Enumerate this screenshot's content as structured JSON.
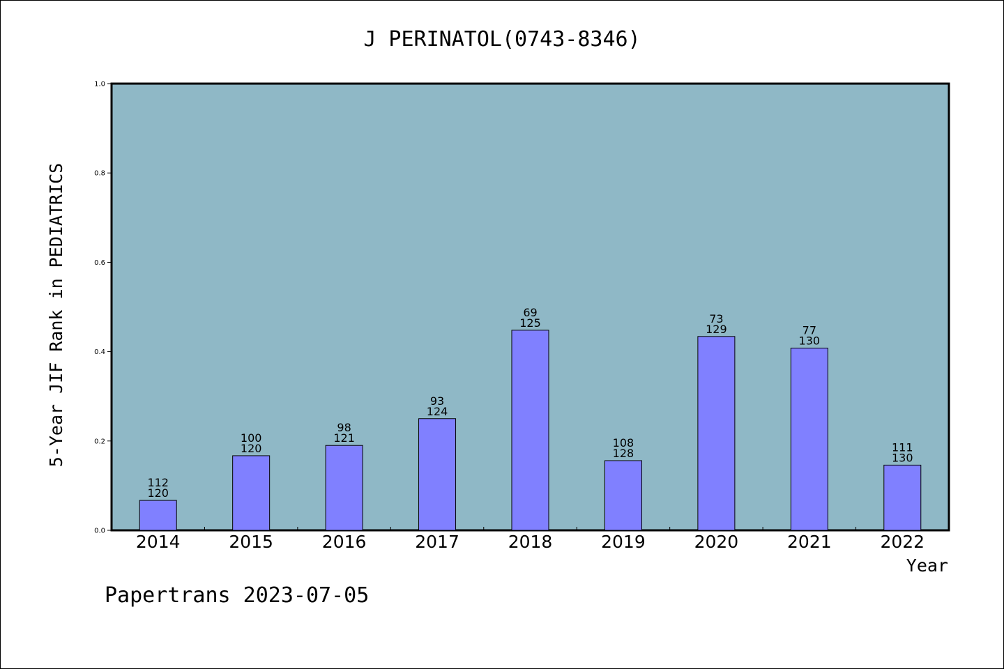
{
  "chart_data": {
    "type": "bar",
    "title": "J PERINATOL(0743-8346)",
    "ylabel": "5-Year JIF Rank in PEDIATRICS",
    "xlabel": "Year",
    "categories": [
      "2014",
      "2015",
      "2016",
      "2017",
      "2018",
      "2019",
      "2020",
      "2021",
      "2022"
    ],
    "values": [
      0.067,
      0.167,
      0.19,
      0.25,
      0.448,
      0.156,
      0.434,
      0.408,
      0.146
    ],
    "rank_labels": [
      "112",
      "100",
      "98",
      "93",
      "69",
      "108",
      "73",
      "77",
      "111"
    ],
    "total_labels": [
      "120",
      "120",
      "121",
      "124",
      "125",
      "128",
      "129",
      "130",
      "130"
    ],
    "ylim": [
      0.0,
      1.0
    ],
    "yticks": [
      "0.0",
      "0.2",
      "0.4",
      "0.6",
      "0.8",
      "1.0"
    ],
    "grid": false,
    "colors": {
      "plot_background": "#8fb8c6",
      "bar_fill": "#8080ff",
      "bar_stroke": "#000000"
    }
  },
  "footer": "Papertrans 2023-07-05"
}
